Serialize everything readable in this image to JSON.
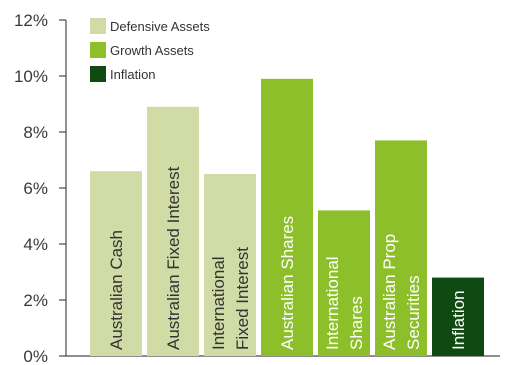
{
  "chart_data": {
    "type": "bar",
    "categories": [
      [
        "Australian Cash"
      ],
      [
        "Australian Fixed Interest"
      ],
      [
        "International",
        "Fixed Interest"
      ],
      [
        "Australian Shares"
      ],
      [
        "International",
        "Shares"
      ],
      [
        "Australian Prop",
        "Securities"
      ],
      [
        "Inflation"
      ]
    ],
    "values": [
      6.6,
      8.9,
      6.5,
      9.9,
      5.2,
      7.7,
      2.8
    ],
    "groups": [
      "defensive",
      "defensive",
      "defensive",
      "growth",
      "growth",
      "growth",
      "inflation"
    ],
    "ylim": [
      0,
      12
    ],
    "yticks": [
      "0%",
      "2%",
      "4%",
      "6%",
      "8%",
      "10%",
      "12%"
    ],
    "legend": [
      {
        "key": "defensive",
        "label": "Defensive Assets",
        "color": "#d0dba6"
      },
      {
        "key": "growth",
        "label": "Growth Assets",
        "color": "#8cbf2a"
      },
      {
        "key": "inflation",
        "label": "Inflation",
        "color": "#0f4a12"
      }
    ],
    "label_colors": {
      "defensive": "#333333",
      "growth": "#ffffff",
      "inflation": "#ffffff"
    },
    "axis_color": "#4a4a4a",
    "grid": false,
    "legend_position": "top-left"
  }
}
